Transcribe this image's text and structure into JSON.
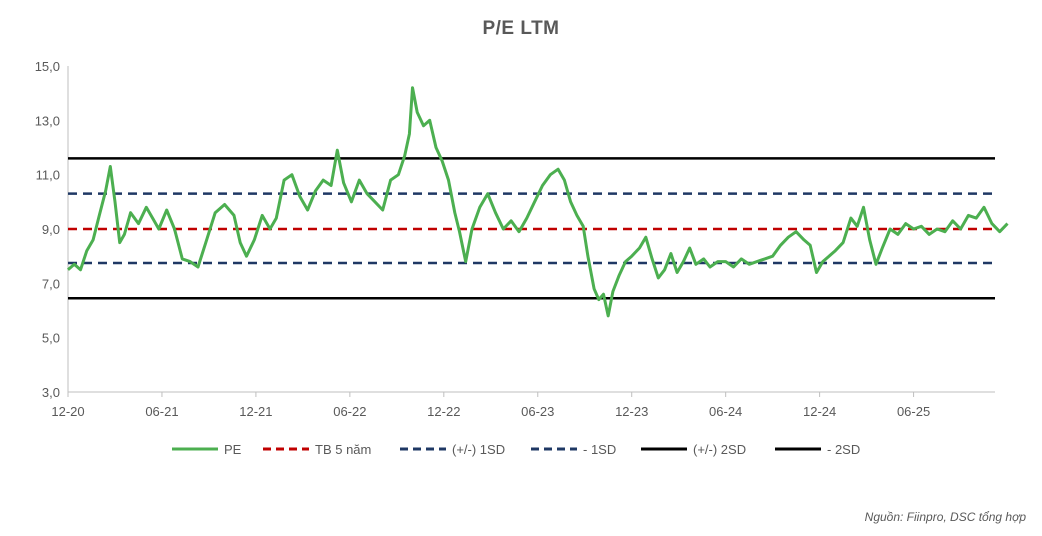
{
  "chart_data": {
    "type": "line",
    "title": "P/E LTM",
    "xlabel": "",
    "ylabel": "",
    "ylim": [
      3,
      15
    ],
    "yticks": [
      "3,0",
      "5,0",
      "7,0",
      "9,0",
      "11,0",
      "13,0",
      "15,0"
    ],
    "ytick_values": [
      3,
      5,
      7,
      9,
      11,
      13,
      15
    ],
    "xlim": [
      "2020-12",
      "2025-11"
    ],
    "xticks": [
      "12-20",
      "06-21",
      "12-21",
      "06-22",
      "12-22",
      "06-23",
      "12-23",
      "06-24",
      "12-24",
      "06-25"
    ],
    "xtick_months": [
      0,
      6,
      12,
      18,
      24,
      30,
      36,
      42,
      48,
      54
    ],
    "x_max_month": 59.2,
    "grid": false,
    "legend_position": "bottom",
    "series": [
      {
        "name": "PE",
        "color": "#4caf50",
        "style": "solid",
        "points": [
          [
            0,
            7.5
          ],
          [
            0.4,
            7.7
          ],
          [
            0.8,
            7.5
          ],
          [
            1.2,
            8.2
          ],
          [
            1.6,
            8.6
          ],
          [
            2.0,
            9.5
          ],
          [
            2.4,
            10.4
          ],
          [
            2.7,
            11.3
          ],
          [
            3.0,
            10.0
          ],
          [
            3.3,
            8.5
          ],
          [
            3.6,
            8.8
          ],
          [
            4.0,
            9.6
          ],
          [
            4.5,
            9.2
          ],
          [
            5.0,
            9.8
          ],
          [
            5.4,
            9.4
          ],
          [
            5.8,
            9.0
          ],
          [
            6.3,
            9.7
          ],
          [
            6.8,
            9.0
          ],
          [
            7.3,
            7.9
          ],
          [
            7.8,
            7.8
          ],
          [
            8.3,
            7.6
          ],
          [
            8.8,
            8.5
          ],
          [
            9.4,
            9.6
          ],
          [
            10.0,
            9.9
          ],
          [
            10.6,
            9.5
          ],
          [
            11.0,
            8.5
          ],
          [
            11.4,
            8.0
          ],
          [
            11.9,
            8.6
          ],
          [
            12.4,
            9.5
          ],
          [
            12.9,
            9.0
          ],
          [
            13.3,
            9.4
          ],
          [
            13.8,
            10.8
          ],
          [
            14.3,
            11.0
          ],
          [
            14.8,
            10.2
          ],
          [
            15.3,
            9.7
          ],
          [
            15.8,
            10.4
          ],
          [
            16.3,
            10.8
          ],
          [
            16.8,
            10.6
          ],
          [
            17.2,
            11.9
          ],
          [
            17.6,
            10.7
          ],
          [
            18.1,
            10.0
          ],
          [
            18.6,
            10.8
          ],
          [
            19.1,
            10.3
          ],
          [
            19.6,
            10.0
          ],
          [
            20.1,
            9.7
          ],
          [
            20.6,
            10.8
          ],
          [
            21.1,
            11.0
          ],
          [
            21.5,
            11.7
          ],
          [
            21.8,
            12.5
          ],
          [
            22.0,
            14.2
          ],
          [
            22.3,
            13.3
          ],
          [
            22.7,
            12.8
          ],
          [
            23.1,
            13.0
          ],
          [
            23.5,
            12.0
          ],
          [
            23.9,
            11.5
          ],
          [
            24.3,
            10.8
          ],
          [
            24.7,
            9.6
          ],
          [
            25.0,
            8.9
          ],
          [
            25.4,
            7.8
          ],
          [
            25.8,
            9.0
          ],
          [
            26.3,
            9.8
          ],
          [
            26.8,
            10.3
          ],
          [
            27.3,
            9.6
          ],
          [
            27.8,
            9.0
          ],
          [
            28.3,
            9.3
          ],
          [
            28.8,
            8.9
          ],
          [
            29.3,
            9.4
          ],
          [
            29.8,
            10.0
          ],
          [
            30.3,
            10.6
          ],
          [
            30.8,
            11.0
          ],
          [
            31.3,
            11.2
          ],
          [
            31.7,
            10.8
          ],
          [
            32.1,
            10.0
          ],
          [
            32.5,
            9.5
          ],
          [
            32.9,
            9.1
          ],
          [
            33.2,
            8.0
          ],
          [
            33.6,
            6.8
          ],
          [
            33.9,
            6.4
          ],
          [
            34.2,
            6.6
          ],
          [
            34.5,
            5.8
          ],
          [
            34.8,
            6.7
          ],
          [
            35.2,
            7.3
          ],
          [
            35.6,
            7.8
          ],
          [
            36.0,
            8.0
          ],
          [
            36.5,
            8.3
          ],
          [
            36.9,
            8.7
          ],
          [
            37.3,
            7.9
          ],
          [
            37.7,
            7.2
          ],
          [
            38.1,
            7.5
          ],
          [
            38.5,
            8.1
          ],
          [
            38.9,
            7.4
          ],
          [
            39.3,
            7.8
          ],
          [
            39.7,
            8.3
          ],
          [
            40.1,
            7.7
          ],
          [
            40.6,
            7.9
          ],
          [
            41.0,
            7.6
          ],
          [
            41.5,
            7.8
          ],
          [
            42.0,
            7.8
          ],
          [
            42.5,
            7.6
          ],
          [
            43.0,
            7.9
          ],
          [
            43.5,
            7.7
          ],
          [
            44.0,
            7.8
          ],
          [
            44.5,
            7.9
          ],
          [
            45.0,
            8.0
          ],
          [
            45.5,
            8.4
          ],
          [
            46.0,
            8.7
          ],
          [
            46.5,
            8.9
          ],
          [
            47.0,
            8.6
          ],
          [
            47.4,
            8.4
          ],
          [
            47.8,
            7.4
          ],
          [
            48.2,
            7.8
          ],
          [
            48.6,
            8.0
          ],
          [
            49.0,
            8.2
          ],
          [
            49.5,
            8.5
          ],
          [
            50.0,
            9.4
          ],
          [
            50.4,
            9.1
          ],
          [
            50.8,
            9.8
          ],
          [
            51.2,
            8.6
          ],
          [
            51.6,
            7.7
          ],
          [
            52.0,
            8.3
          ],
          [
            52.5,
            9.0
          ],
          [
            53.0,
            8.8
          ],
          [
            53.5,
            9.2
          ],
          [
            54.0,
            9.0
          ],
          [
            54.5,
            9.1
          ],
          [
            55.0,
            8.8
          ],
          [
            55.5,
            9.0
          ],
          [
            56.0,
            8.9
          ],
          [
            56.5,
            9.3
          ],
          [
            57.0,
            9.0
          ],
          [
            57.5,
            9.5
          ],
          [
            58.0,
            9.4
          ],
          [
            58.5,
            9.8
          ],
          [
            59.0,
            9.2
          ],
          [
            59.5,
            8.9
          ],
          [
            60.0,
            9.2
          ]
        ]
      },
      {
        "name": "TB 5 năm",
        "color": "#c00000",
        "style": "dashed",
        "value": 9.0
      },
      {
        "name": "(+/-) 1SD",
        "color": "#1f3864",
        "style": "dashed",
        "value": 10.3
      },
      {
        "name": "- 1SD",
        "color": "#1f3864",
        "style": "dashed",
        "value": 7.75
      },
      {
        "name": "(+/-) 2SD",
        "color": "#000000",
        "style": "solid",
        "value": 11.6
      },
      {
        "name": "- 2SD",
        "color": "#000000",
        "style": "solid",
        "value": 6.45
      }
    ]
  },
  "source_note": "Nguồn: Fiinpro, DSC tổng hợp"
}
